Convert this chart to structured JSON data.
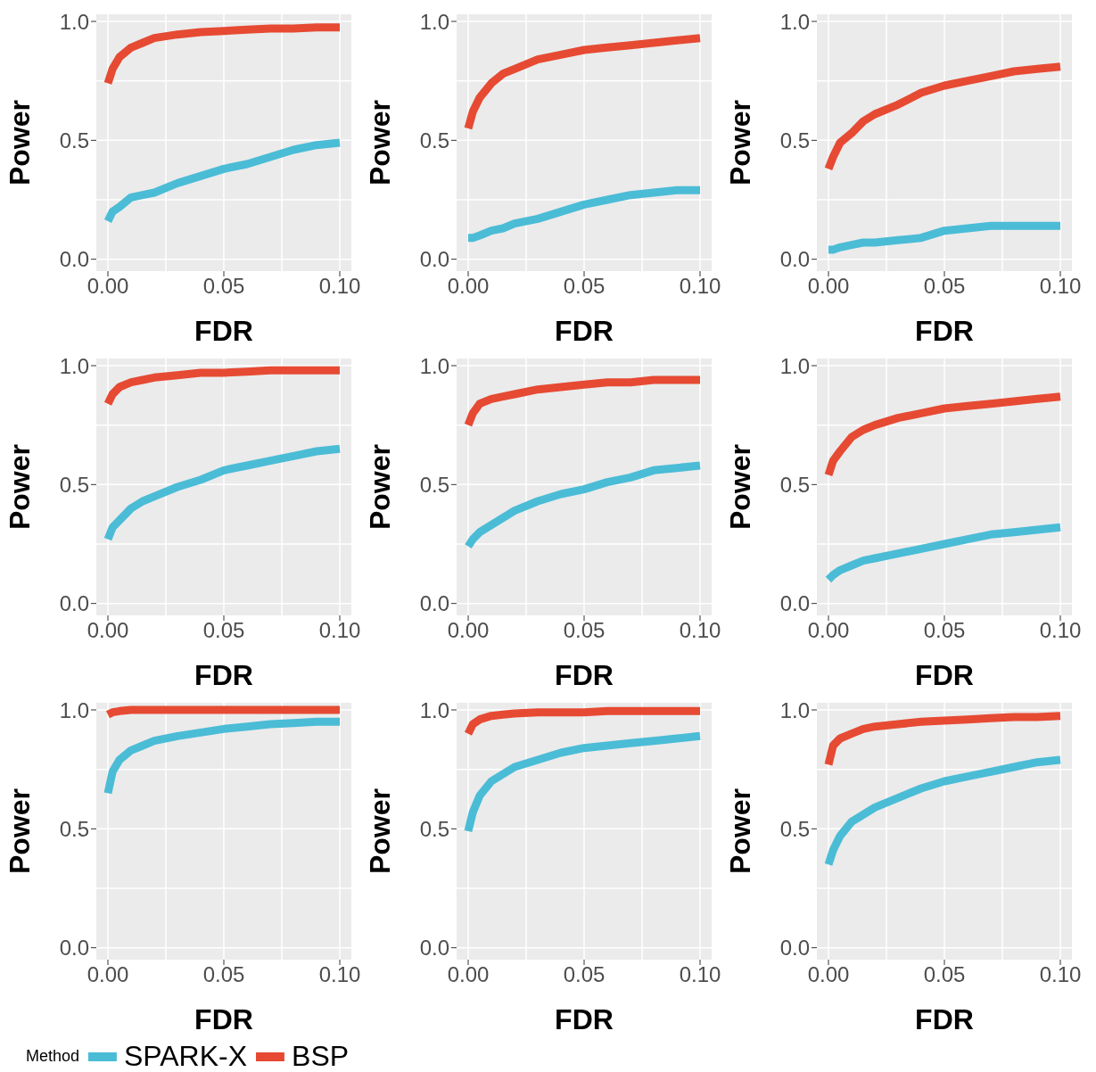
{
  "chart_data": [
    {
      "type": "line",
      "xlabel": "FDR",
      "ylabel": "Power",
      "x": [
        0,
        0.002,
        0.005,
        0.01,
        0.015,
        0.02,
        0.03,
        0.04,
        0.05,
        0.06,
        0.07,
        0.08,
        0.09,
        0.1
      ],
      "xlim": [
        -0.005,
        0.105
      ],
      "ylim": [
        -0.05,
        1.03
      ],
      "xticks": [
        {
          "value": 0,
          "label": "0.00"
        },
        {
          "value": 0.05,
          "label": "0.05"
        },
        {
          "value": 0.1,
          "label": "0.10"
        }
      ],
      "yticks": [
        {
          "value": 0,
          "label": "0.0"
        },
        {
          "value": 0.5,
          "label": "0.5"
        },
        {
          "value": 1,
          "label": "1.0"
        }
      ],
      "grid": true,
      "legend": false,
      "series": [
        {
          "color": "#4bbcd6",
          "values": [
            0.16,
            0.2,
            0.22,
            0.26,
            0.27,
            0.28,
            0.32,
            0.35,
            0.38,
            0.4,
            0.43,
            0.46,
            0.48,
            0.49
          ]
        },
        {
          "color": "#e64a33",
          "values": [
            0.74,
            0.8,
            0.85,
            0.89,
            0.91,
            0.93,
            0.945,
            0.955,
            0.96,
            0.965,
            0.97,
            0.97,
            0.975,
            0.975
          ]
        }
      ]
    },
    {
      "type": "line",
      "xlabel": "FDR",
      "ylabel": "Power",
      "x": [
        0,
        0.002,
        0.005,
        0.01,
        0.015,
        0.02,
        0.03,
        0.04,
        0.05,
        0.06,
        0.07,
        0.08,
        0.09,
        0.1
      ],
      "xlim": [
        -0.005,
        0.105
      ],
      "ylim": [
        -0.05,
        1.03
      ],
      "xticks": [
        {
          "value": 0,
          "label": "0.00"
        },
        {
          "value": 0.05,
          "label": "0.05"
        },
        {
          "value": 0.1,
          "label": "0.10"
        }
      ],
      "yticks": [
        {
          "value": 0,
          "label": "0.0"
        },
        {
          "value": 0.5,
          "label": "0.5"
        },
        {
          "value": 1,
          "label": "1.0"
        }
      ],
      "grid": true,
      "legend": false,
      "series": [
        {
          "color": "#4bbcd6",
          "values": [
            0.09,
            0.09,
            0.1,
            0.12,
            0.13,
            0.15,
            0.17,
            0.2,
            0.23,
            0.25,
            0.27,
            0.28,
            0.29,
            0.29
          ]
        },
        {
          "color": "#e64a33",
          "values": [
            0.55,
            0.62,
            0.68,
            0.74,
            0.78,
            0.8,
            0.84,
            0.86,
            0.88,
            0.89,
            0.9,
            0.91,
            0.92,
            0.93
          ]
        }
      ]
    },
    {
      "type": "line",
      "xlabel": "FDR",
      "ylabel": "Power",
      "x": [
        0,
        0.002,
        0.005,
        0.01,
        0.015,
        0.02,
        0.03,
        0.04,
        0.05,
        0.06,
        0.07,
        0.08,
        0.09,
        0.1
      ],
      "xlim": [
        -0.005,
        0.105
      ],
      "ylim": [
        -0.05,
        1.03
      ],
      "xticks": [
        {
          "value": 0,
          "label": "0.00"
        },
        {
          "value": 0.05,
          "label": "0.05"
        },
        {
          "value": 0.1,
          "label": "0.10"
        }
      ],
      "yticks": [
        {
          "value": 0,
          "label": "0.0"
        },
        {
          "value": 0.5,
          "label": "0.5"
        },
        {
          "value": 1,
          "label": "1.0"
        }
      ],
      "grid": true,
      "legend": false,
      "series": [
        {
          "color": "#4bbcd6",
          "values": [
            0.04,
            0.04,
            0.05,
            0.06,
            0.07,
            0.07,
            0.08,
            0.09,
            0.12,
            0.13,
            0.14,
            0.14,
            0.14,
            0.14
          ]
        },
        {
          "color": "#e64a33",
          "values": [
            0.38,
            0.43,
            0.49,
            0.53,
            0.58,
            0.61,
            0.65,
            0.7,
            0.73,
            0.75,
            0.77,
            0.79,
            0.8,
            0.81
          ]
        }
      ]
    },
    {
      "type": "line",
      "xlabel": "FDR",
      "ylabel": "Power",
      "x": [
        0,
        0.002,
        0.005,
        0.01,
        0.015,
        0.02,
        0.03,
        0.04,
        0.05,
        0.06,
        0.07,
        0.08,
        0.09,
        0.1
      ],
      "xlim": [
        -0.005,
        0.105
      ],
      "ylim": [
        -0.05,
        1.03
      ],
      "xticks": [
        {
          "value": 0,
          "label": "0.00"
        },
        {
          "value": 0.05,
          "label": "0.05"
        },
        {
          "value": 0.1,
          "label": "0.10"
        }
      ],
      "yticks": [
        {
          "value": 0,
          "label": "0.0"
        },
        {
          "value": 0.5,
          "label": "0.5"
        },
        {
          "value": 1,
          "label": "1.0"
        }
      ],
      "grid": true,
      "legend": false,
      "series": [
        {
          "color": "#4bbcd6",
          "values": [
            0.27,
            0.32,
            0.35,
            0.4,
            0.43,
            0.45,
            0.49,
            0.52,
            0.56,
            0.58,
            0.6,
            0.62,
            0.64,
            0.65
          ]
        },
        {
          "color": "#e64a33",
          "values": [
            0.84,
            0.88,
            0.91,
            0.93,
            0.94,
            0.95,
            0.96,
            0.97,
            0.97,
            0.975,
            0.98,
            0.98,
            0.98,
            0.98
          ]
        }
      ]
    },
    {
      "type": "line",
      "xlabel": "FDR",
      "ylabel": "Power",
      "x": [
        0,
        0.002,
        0.005,
        0.01,
        0.015,
        0.02,
        0.03,
        0.04,
        0.05,
        0.06,
        0.07,
        0.08,
        0.09,
        0.1
      ],
      "xlim": [
        -0.005,
        0.105
      ],
      "ylim": [
        -0.05,
        1.03
      ],
      "xticks": [
        {
          "value": 0,
          "label": "0.00"
        },
        {
          "value": 0.05,
          "label": "0.05"
        },
        {
          "value": 0.1,
          "label": "0.10"
        }
      ],
      "yticks": [
        {
          "value": 0,
          "label": "0.0"
        },
        {
          "value": 0.5,
          "label": "0.5"
        },
        {
          "value": 1,
          "label": "1.0"
        }
      ],
      "grid": true,
      "legend": false,
      "series": [
        {
          "color": "#4bbcd6",
          "values": [
            0.24,
            0.27,
            0.3,
            0.33,
            0.36,
            0.39,
            0.43,
            0.46,
            0.48,
            0.51,
            0.53,
            0.56,
            0.57,
            0.58
          ]
        },
        {
          "color": "#e64a33",
          "values": [
            0.75,
            0.8,
            0.84,
            0.86,
            0.87,
            0.88,
            0.9,
            0.91,
            0.92,
            0.93,
            0.93,
            0.94,
            0.94,
            0.94
          ]
        }
      ]
    },
    {
      "type": "line",
      "xlabel": "FDR",
      "ylabel": "Power",
      "x": [
        0,
        0.002,
        0.005,
        0.01,
        0.015,
        0.02,
        0.03,
        0.04,
        0.05,
        0.06,
        0.07,
        0.08,
        0.09,
        0.1
      ],
      "xlim": [
        -0.005,
        0.105
      ],
      "ylim": [
        -0.05,
        1.03
      ],
      "xticks": [
        {
          "value": 0,
          "label": "0.00"
        },
        {
          "value": 0.05,
          "label": "0.05"
        },
        {
          "value": 0.1,
          "label": "0.10"
        }
      ],
      "yticks": [
        {
          "value": 0,
          "label": "0.0"
        },
        {
          "value": 0.5,
          "label": "0.5"
        },
        {
          "value": 1,
          "label": "1.0"
        }
      ],
      "grid": true,
      "legend": false,
      "series": [
        {
          "color": "#4bbcd6",
          "values": [
            0.1,
            0.12,
            0.14,
            0.16,
            0.18,
            0.19,
            0.21,
            0.23,
            0.25,
            0.27,
            0.29,
            0.3,
            0.31,
            0.32
          ]
        },
        {
          "color": "#e64a33",
          "values": [
            0.54,
            0.6,
            0.64,
            0.7,
            0.73,
            0.75,
            0.78,
            0.8,
            0.82,
            0.83,
            0.84,
            0.85,
            0.86,
            0.87
          ]
        }
      ]
    },
    {
      "type": "line",
      "xlabel": "FDR",
      "ylabel": "Power",
      "x": [
        0,
        0.002,
        0.005,
        0.01,
        0.015,
        0.02,
        0.03,
        0.04,
        0.05,
        0.06,
        0.07,
        0.08,
        0.09,
        0.1
      ],
      "xlim": [
        -0.005,
        0.105
      ],
      "ylim": [
        -0.05,
        1.03
      ],
      "xticks": [
        {
          "value": 0,
          "label": "0.00"
        },
        {
          "value": 0.05,
          "label": "0.05"
        },
        {
          "value": 0.1,
          "label": "0.10"
        }
      ],
      "yticks": [
        {
          "value": 0,
          "label": "0.0"
        },
        {
          "value": 0.5,
          "label": "0.5"
        },
        {
          "value": 1,
          "label": "1.0"
        }
      ],
      "grid": true,
      "legend": false,
      "series": [
        {
          "color": "#4bbcd6",
          "values": [
            0.65,
            0.74,
            0.79,
            0.83,
            0.85,
            0.87,
            0.89,
            0.905,
            0.92,
            0.93,
            0.94,
            0.945,
            0.95,
            0.95
          ]
        },
        {
          "color": "#e64a33",
          "values": [
            0.98,
            0.99,
            0.995,
            1,
            1,
            1,
            1,
            1,
            1,
            1,
            1,
            1,
            1,
            1
          ]
        }
      ]
    },
    {
      "type": "line",
      "xlabel": "FDR",
      "ylabel": "Power",
      "x": [
        0,
        0.002,
        0.005,
        0.01,
        0.015,
        0.02,
        0.03,
        0.04,
        0.05,
        0.06,
        0.07,
        0.08,
        0.09,
        0.1
      ],
      "xlim": [
        -0.005,
        0.105
      ],
      "ylim": [
        -0.05,
        1.03
      ],
      "xticks": [
        {
          "value": 0,
          "label": "0.00"
        },
        {
          "value": 0.05,
          "label": "0.05"
        },
        {
          "value": 0.1,
          "label": "0.10"
        }
      ],
      "yticks": [
        {
          "value": 0,
          "label": "0.0"
        },
        {
          "value": 0.5,
          "label": "0.5"
        },
        {
          "value": 1,
          "label": "1.0"
        }
      ],
      "grid": true,
      "legend": false,
      "series": [
        {
          "color": "#4bbcd6",
          "values": [
            0.49,
            0.57,
            0.64,
            0.7,
            0.73,
            0.76,
            0.79,
            0.82,
            0.84,
            0.85,
            0.86,
            0.87,
            0.88,
            0.89
          ]
        },
        {
          "color": "#e64a33",
          "values": [
            0.9,
            0.94,
            0.96,
            0.975,
            0.98,
            0.985,
            0.99,
            0.99,
            0.99,
            0.995,
            0.995,
            0.995,
            0.995,
            0.995
          ]
        }
      ]
    },
    {
      "type": "line",
      "xlabel": "FDR",
      "ylabel": "Power",
      "x": [
        0,
        0.002,
        0.005,
        0.01,
        0.015,
        0.02,
        0.03,
        0.04,
        0.05,
        0.06,
        0.07,
        0.08,
        0.09,
        0.1
      ],
      "xlim": [
        -0.005,
        0.105
      ],
      "ylim": [
        -0.05,
        1.03
      ],
      "xticks": [
        {
          "value": 0,
          "label": "0.00"
        },
        {
          "value": 0.05,
          "label": "0.05"
        },
        {
          "value": 0.1,
          "label": "0.10"
        }
      ],
      "yticks": [
        {
          "value": 0,
          "label": "0.0"
        },
        {
          "value": 0.5,
          "label": "0.5"
        },
        {
          "value": 1,
          "label": "1.0"
        }
      ],
      "grid": true,
      "legend": "bottom",
      "legend_title": "Method",
      "series": [
        {
          "name": "SPARK-X",
          "color": "#4bbcd6",
          "values": [
            0.35,
            0.41,
            0.47,
            0.53,
            0.56,
            0.59,
            0.63,
            0.67,
            0.7,
            0.72,
            0.74,
            0.76,
            0.78,
            0.79
          ]
        },
        {
          "name": "BSP",
          "color": "#e64a33",
          "values": [
            0.77,
            0.85,
            0.88,
            0.9,
            0.92,
            0.93,
            0.94,
            0.95,
            0.955,
            0.96,
            0.965,
            0.97,
            0.97,
            0.975
          ]
        }
      ]
    }
  ]
}
